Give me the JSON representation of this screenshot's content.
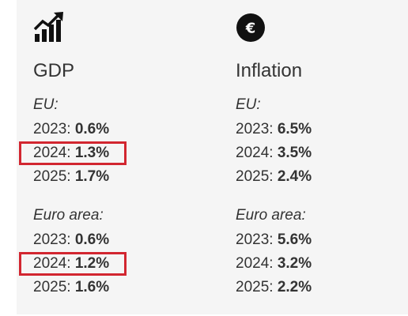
{
  "gdp": {
    "icon": "growth-chart-icon",
    "title": "GDP",
    "groups": [
      {
        "label": "EU:",
        "rows": [
          {
            "year": "2023:",
            "value": "0.6%"
          },
          {
            "year": "2024:",
            "value": "1.3%"
          },
          {
            "year": "2025:",
            "value": "1.7%"
          }
        ]
      },
      {
        "label": "Euro area:",
        "rows": [
          {
            "year": "2023:",
            "value": "0.6%"
          },
          {
            "year": "2024:",
            "value": "1.2%"
          },
          {
            "year": "2025:",
            "value": "1.6%"
          }
        ]
      }
    ]
  },
  "inflation": {
    "icon": "euro-coin-icon",
    "icon_glyph": "€",
    "title": "Inflation",
    "groups": [
      {
        "label": "EU:",
        "rows": [
          {
            "year": "2023:",
            "value": "6.5%"
          },
          {
            "year": "2024:",
            "value": "3.5%"
          },
          {
            "year": "2025:",
            "value": "2.4%"
          }
        ]
      },
      {
        "label": "Euro area:",
        "rows": [
          {
            "year": "2023:",
            "value": "5.6%"
          },
          {
            "year": "2024:",
            "value": "3.2%"
          },
          {
            "year": "2025:",
            "value": "2.2%"
          }
        ]
      }
    ]
  },
  "colors": {
    "panel_background": "#f5f5f5",
    "text": "#333333",
    "highlight_border": "#d22630",
    "icon": "#111111"
  }
}
